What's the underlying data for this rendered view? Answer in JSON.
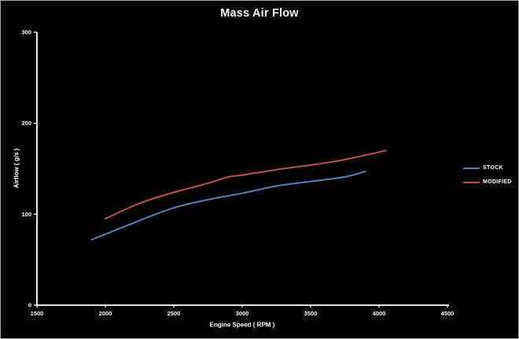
{
  "frame": {
    "background": "#000000",
    "border_color": "#a6a6a6",
    "text_color": "#ffffff"
  },
  "chart_data": {
    "type": "line",
    "title": "Mass Air Flow",
    "xlabel": "Engine Speed ( RPM )",
    "ylabel": "Airflow ( g/s )",
    "xlim": [
      1500,
      4500
    ],
    "ylim": [
      0,
      300
    ],
    "x_ticks": [
      1500,
      2000,
      2500,
      3000,
      3500,
      4000,
      4500
    ],
    "y_ticks": [
      0,
      100,
      200,
      300
    ],
    "grid": false,
    "smoothed": true,
    "legend_position": "right",
    "axis_color": "#ffffff",
    "series": [
      {
        "name": "STOCK",
        "color": "#4f81bd",
        "x": [
          1900,
          2000,
          2250,
          2500,
          2750,
          3000,
          3250,
          3500,
          3750,
          3900
        ],
        "y": [
          72,
          78,
          93,
          107,
          116,
          123,
          131,
          136,
          141,
          147
        ]
      },
      {
        "name": "MODIFIED",
        "color": "#c0504d",
        "x": [
          2000,
          2250,
          2500,
          2750,
          2900,
          3000,
          3250,
          3500,
          3750,
          4050
        ],
        "y": [
          95,
          112,
          124,
          134,
          141,
          143,
          149,
          154,
          160,
          170
        ]
      }
    ]
  }
}
